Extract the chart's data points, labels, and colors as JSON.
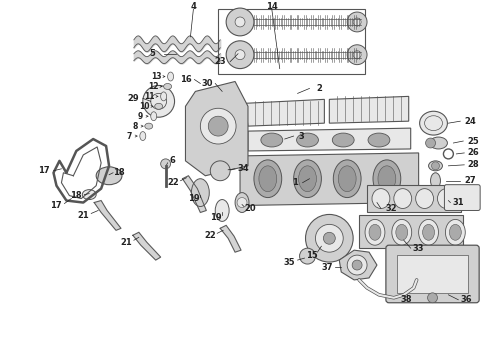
{
  "background_color": "#ffffff",
  "figsize": [
    4.9,
    3.6
  ],
  "dpi": 100,
  "line_color": "#555555",
  "text_color": "#222222",
  "fill_light": "#e8e8e8",
  "fill_mid": "#d0d0d0",
  "fill_dark": "#aaaaaa"
}
